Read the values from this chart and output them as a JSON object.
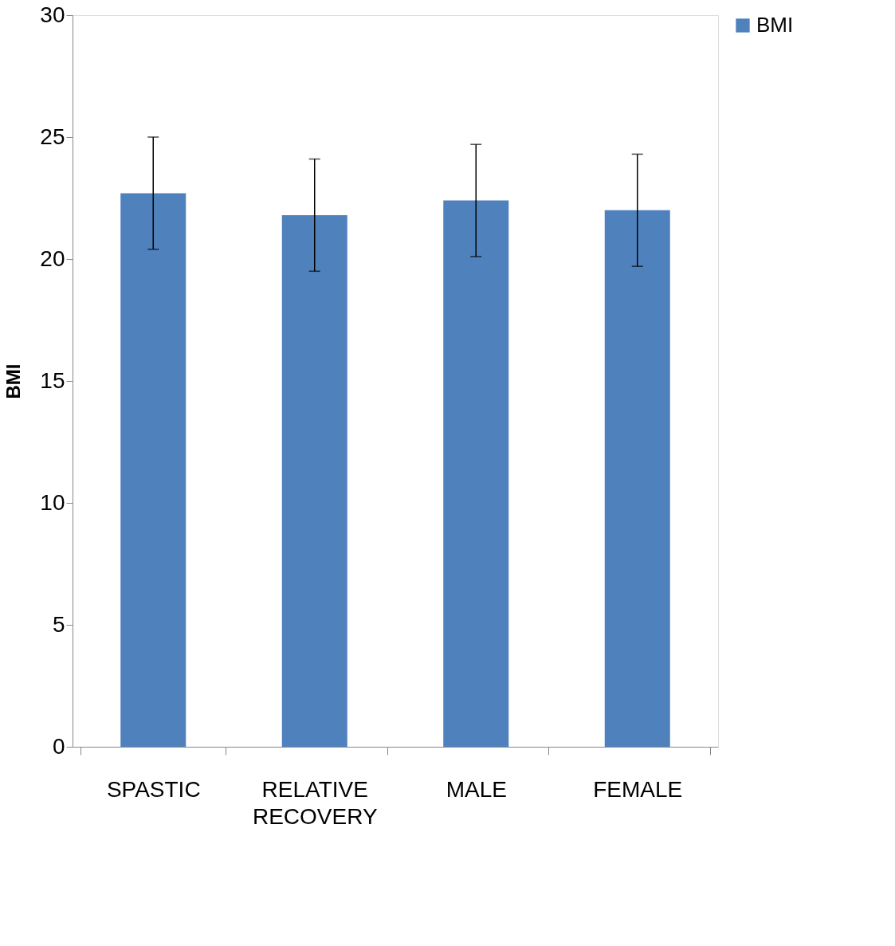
{
  "chart_data": {
    "type": "bar",
    "ylabel": "BMI",
    "categories": [
      "SPASTIC",
      "RELATIVE RECOVERY",
      "MALE",
      "FEMALE"
    ],
    "series": [
      {
        "name": "BMI",
        "color": "#4f81bd",
        "values": [
          22.7,
          21.8,
          22.4,
          22.0
        ],
        "errors": [
          2.3,
          2.3,
          2.3,
          2.3
        ]
      }
    ],
    "ylim": [
      0,
      30
    ],
    "yticks": [
      0,
      5,
      10,
      15,
      20,
      25,
      30
    ],
    "grid": false,
    "legend": "right"
  }
}
